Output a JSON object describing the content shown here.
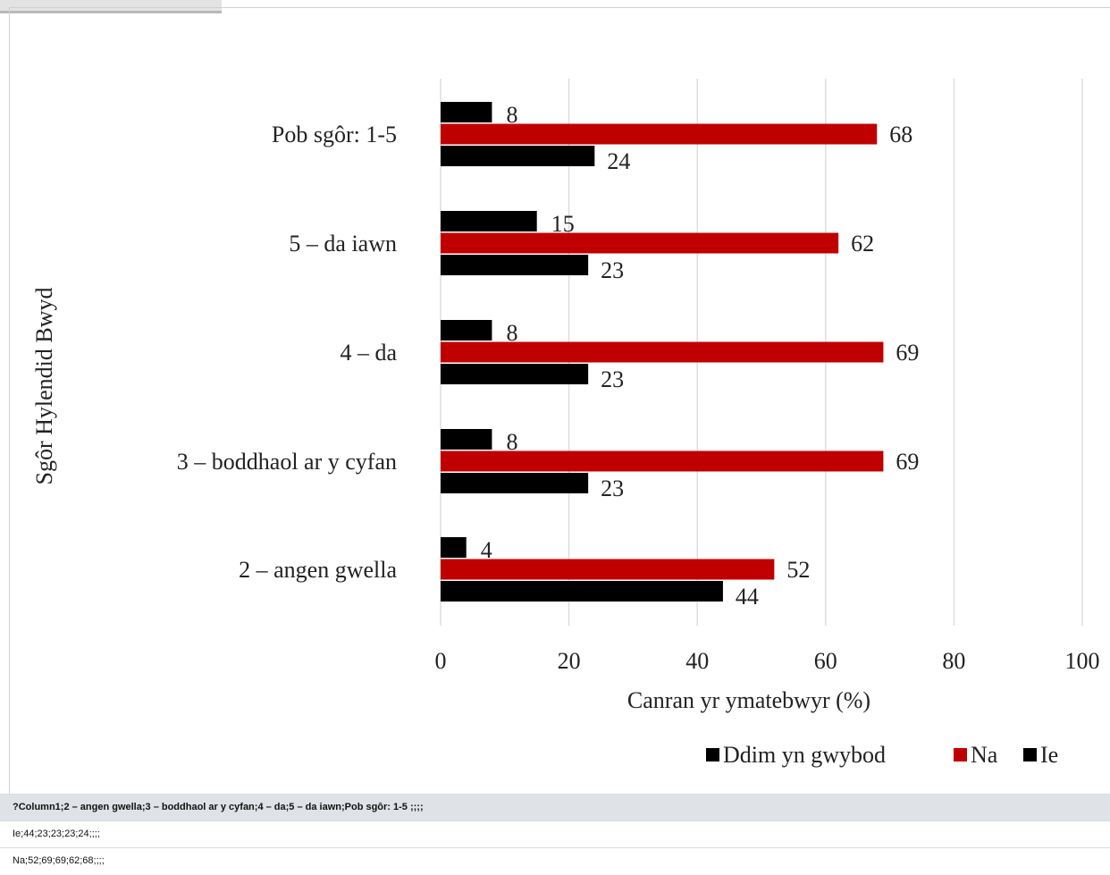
{
  "chart_data": {
    "type": "bar",
    "orientation": "horizontal",
    "categories": [
      "Pob sgôr: 1-5",
      "5 – da iawn",
      "4 – da",
      "3 – boddhaol ar y cyfan",
      "2 – angen gwella"
    ],
    "series": [
      {
        "name": "Ddim yn gwybod",
        "values": [
          8,
          15,
          8,
          8,
          4
        ],
        "color": "#000000"
      },
      {
        "name": "Na",
        "values": [
          68,
          62,
          69,
          69,
          52
        ],
        "color": "#c00000"
      },
      {
        "name": "Ie",
        "values": [
          24,
          23,
          23,
          23,
          44
        ],
        "color": "#000000"
      }
    ],
    "xlabel": "Canran yr ymatebwyr (%)",
    "ylabel": "Sgôr Hylendid Bwyd",
    "xlim": [
      0,
      100
    ],
    "xticks": [
      "0",
      "20",
      "40",
      "60",
      "80",
      "100"
    ],
    "grid": true,
    "legend_position": "bottom-right",
    "legend": [
      "Ddim yn gwybod",
      "Na",
      "Ie"
    ]
  },
  "table": {
    "header": "?Column1;2 – angen gwella;3 – boddhaol ar y cyfan;4 – da;5 – da iawn;Pob sgôr: 1-5 ;;;;",
    "rows": [
      "Ie;44;23;23;23;24;;;;",
      "Na;52;69;69;62;68;;;;"
    ]
  }
}
